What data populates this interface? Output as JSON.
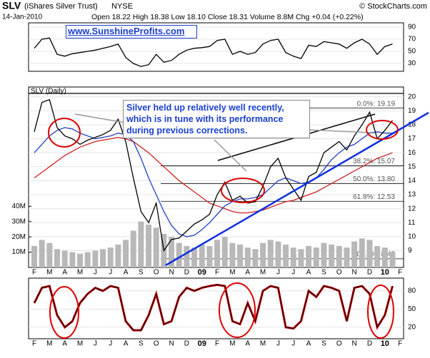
{
  "header": {
    "symbol": "SLV",
    "name": "(iShares Silver Trust)",
    "exchange": "NYSE",
    "source": "© StockCharts.com",
    "date": "14-Jan-2010",
    "quote": "Open 18.22 High 18.38 Low 18.10 Close 18.31 Volume 8.8M Chg +0.04 (+0.22%)"
  },
  "watermark": "www.SunshineProfits.com",
  "callout": "Silver held up relatively well recently, which is in tune with its performance during previous corrections.",
  "chart_data": [
    {
      "type": "line",
      "ylim": [
        17,
        97
      ],
      "yticks": [
        30,
        50,
        70,
        90
      ],
      "grid": true,
      "series": [
        {
          "color": "#000000",
          "values": [
            55,
            70,
            72,
            45,
            42,
            46,
            48,
            50,
            52,
            55,
            58,
            62,
            40,
            30,
            25,
            28,
            45,
            32,
            35,
            45,
            52,
            55,
            56,
            58,
            68,
            70,
            45,
            50,
            45,
            48,
            62,
            68,
            70,
            48,
            42,
            38,
            60,
            58,
            66,
            64,
            62,
            55,
            64,
            70,
            62,
            45,
            58,
            62,
            null,
            null
          ]
        }
      ]
    },
    {
      "type": "line",
      "title": "SLV (Daily)",
      "categories": [
        "F",
        null,
        "M",
        null,
        "A",
        null,
        "M",
        null,
        "J",
        null,
        "J",
        null,
        "A",
        null,
        "S",
        null,
        "O",
        null,
        "N",
        null,
        "D",
        null,
        "09",
        null,
        "F",
        null,
        "M",
        null,
        "A",
        null,
        "M",
        null,
        "J",
        null,
        "J",
        null,
        "A",
        null,
        "S",
        null,
        "O",
        null,
        "N",
        null,
        "D",
        null,
        "10",
        null,
        "F",
        null
      ],
      "ylim": [
        7.8,
        20.7
      ],
      "yticks": [
        9,
        10,
        11,
        12,
        13,
        14,
        15,
        16,
        17,
        18,
        19,
        20
      ],
      "y2lim": [
        0,
        118
      ],
      "y2ticks": [
        {
          "value": 10,
          "label": "10M"
        },
        {
          "value": 20,
          "label": "20M"
        },
        {
          "value": 30,
          "label": "30M"
        },
        {
          "value": 40,
          "label": "40M"
        }
      ],
      "grid": true,
      "series": [
        {
          "type": "bar",
          "axis": "y2",
          "color": "#b8b8b8",
          "values": [
            14,
            18,
            16,
            12,
            11,
            10,
            9,
            10,
            11,
            12,
            13,
            15,
            18,
            24,
            30,
            28,
            26,
            22,
            20,
            16,
            14,
            13,
            15,
            14,
            18,
            20,
            16,
            15,
            13,
            12,
            16,
            18,
            17,
            15,
            13,
            12,
            14,
            13,
            16,
            15,
            14,
            13,
            17,
            19,
            18,
            14,
            13,
            10,
            null,
            null
          ]
        },
        {
          "color": "#d02020",
          "values": [
            14.2,
            14.6,
            15.0,
            15.4,
            15.8,
            16.1,
            16.4,
            16.6,
            16.8,
            16.9,
            17.0,
            17.1,
            17.0,
            16.8,
            16.4,
            16.0,
            15.5,
            15.0,
            14.5,
            14.0,
            13.6,
            13.2,
            12.8,
            12.4,
            12.2,
            12.0,
            11.8,
            11.7,
            11.7,
            11.8,
            11.9,
            12.1,
            12.3,
            12.5,
            12.6,
            12.8,
            13.0,
            13.2,
            13.5,
            13.8,
            14.1,
            14.4,
            14.7,
            15.0,
            15.3,
            15.6,
            15.8,
            16.0,
            null,
            null
          ]
        },
        {
          "color": "#2040c0",
          "values": [
            16.0,
            16.6,
            17.2,
            17.6,
            17.8,
            17.7,
            17.4,
            17.2,
            17.0,
            17.1,
            17.2,
            17.4,
            17.3,
            16.8,
            15.6,
            14.2,
            13.0,
            11.8,
            10.8,
            10.2,
            10.0,
            10.1,
            10.5,
            11.0,
            11.6,
            12.2,
            12.5,
            12.7,
            12.7,
            12.8,
            13.0,
            13.5,
            14.0,
            14.2,
            14.0,
            13.8,
            13.9,
            14.2,
            14.8,
            15.5,
            16.0,
            16.4,
            16.6,
            17.0,
            17.4,
            17.5,
            17.4,
            17.4,
            null,
            null
          ]
        },
        {
          "color": "#000000",
          "values": [
            17.5,
            19.6,
            19.8,
            17.8,
            17.2,
            17.0,
            16.6,
            16.9,
            17.1,
            17.3,
            17.6,
            18.4,
            16.8,
            14.2,
            11.8,
            11.0,
            12.4,
            9.0,
            9.8,
            9.9,
            10.4,
            10.9,
            11.2,
            11.6,
            13.0,
            13.9,
            12.6,
            12.9,
            12.4,
            12.5,
            13.6,
            15.0,
            15.6,
            14.2,
            13.4,
            12.6,
            14.3,
            14.6,
            16.0,
            16.4,
            16.8,
            16.2,
            17.2,
            18.0,
            18.9,
            17.0,
            17.6,
            18.31,
            null,
            null
          ]
        }
      ],
      "fib_levels": [
        {
          "value": 19.19,
          "label": "0.0%: 19.19"
        },
        {
          "value": 15.07,
          "label": "38.2%: 15.07"
        },
        {
          "value": 13.8,
          "label": "50.0%: 13.80"
        },
        {
          "value": 12.53,
          "label": "61.8%: 12.53"
        },
        {
          "value": 8.42,
          "label": "100.0%: 8.42"
        }
      ]
    },
    {
      "type": "line",
      "categories": [
        "F",
        null,
        "M",
        null,
        "A",
        null,
        "M",
        null,
        "J",
        null,
        "J",
        null,
        "A",
        null,
        "S",
        null,
        "O",
        null,
        "N",
        null,
        "D",
        null,
        "09",
        null,
        "F",
        null,
        "M",
        null,
        "A",
        null,
        "M",
        null,
        "J",
        null,
        "J",
        null,
        "A",
        null,
        "S",
        null,
        "O",
        null,
        "N",
        null,
        "D",
        null,
        "10",
        null,
        "F",
        null
      ],
      "ylim": [
        1,
        101
      ],
      "yticks": [
        20,
        50,
        80
      ],
      "grid": true,
      "series": [
        {
          "color": "#cc0000",
          "values": [
            60,
            85,
            88,
            40,
            20,
            30,
            60,
            75,
            85,
            80,
            88,
            85,
            30,
            15,
            15,
            40,
            75,
            25,
            30,
            70,
            85,
            80,
            85,
            88,
            90,
            88,
            30,
            25,
            60,
            30,
            80,
            88,
            85,
            20,
            18,
            30,
            80,
            70,
            88,
            85,
            80,
            30,
            85,
            88,
            75,
            20,
            40,
            88,
            null,
            null
          ]
        }
      ]
    }
  ]
}
